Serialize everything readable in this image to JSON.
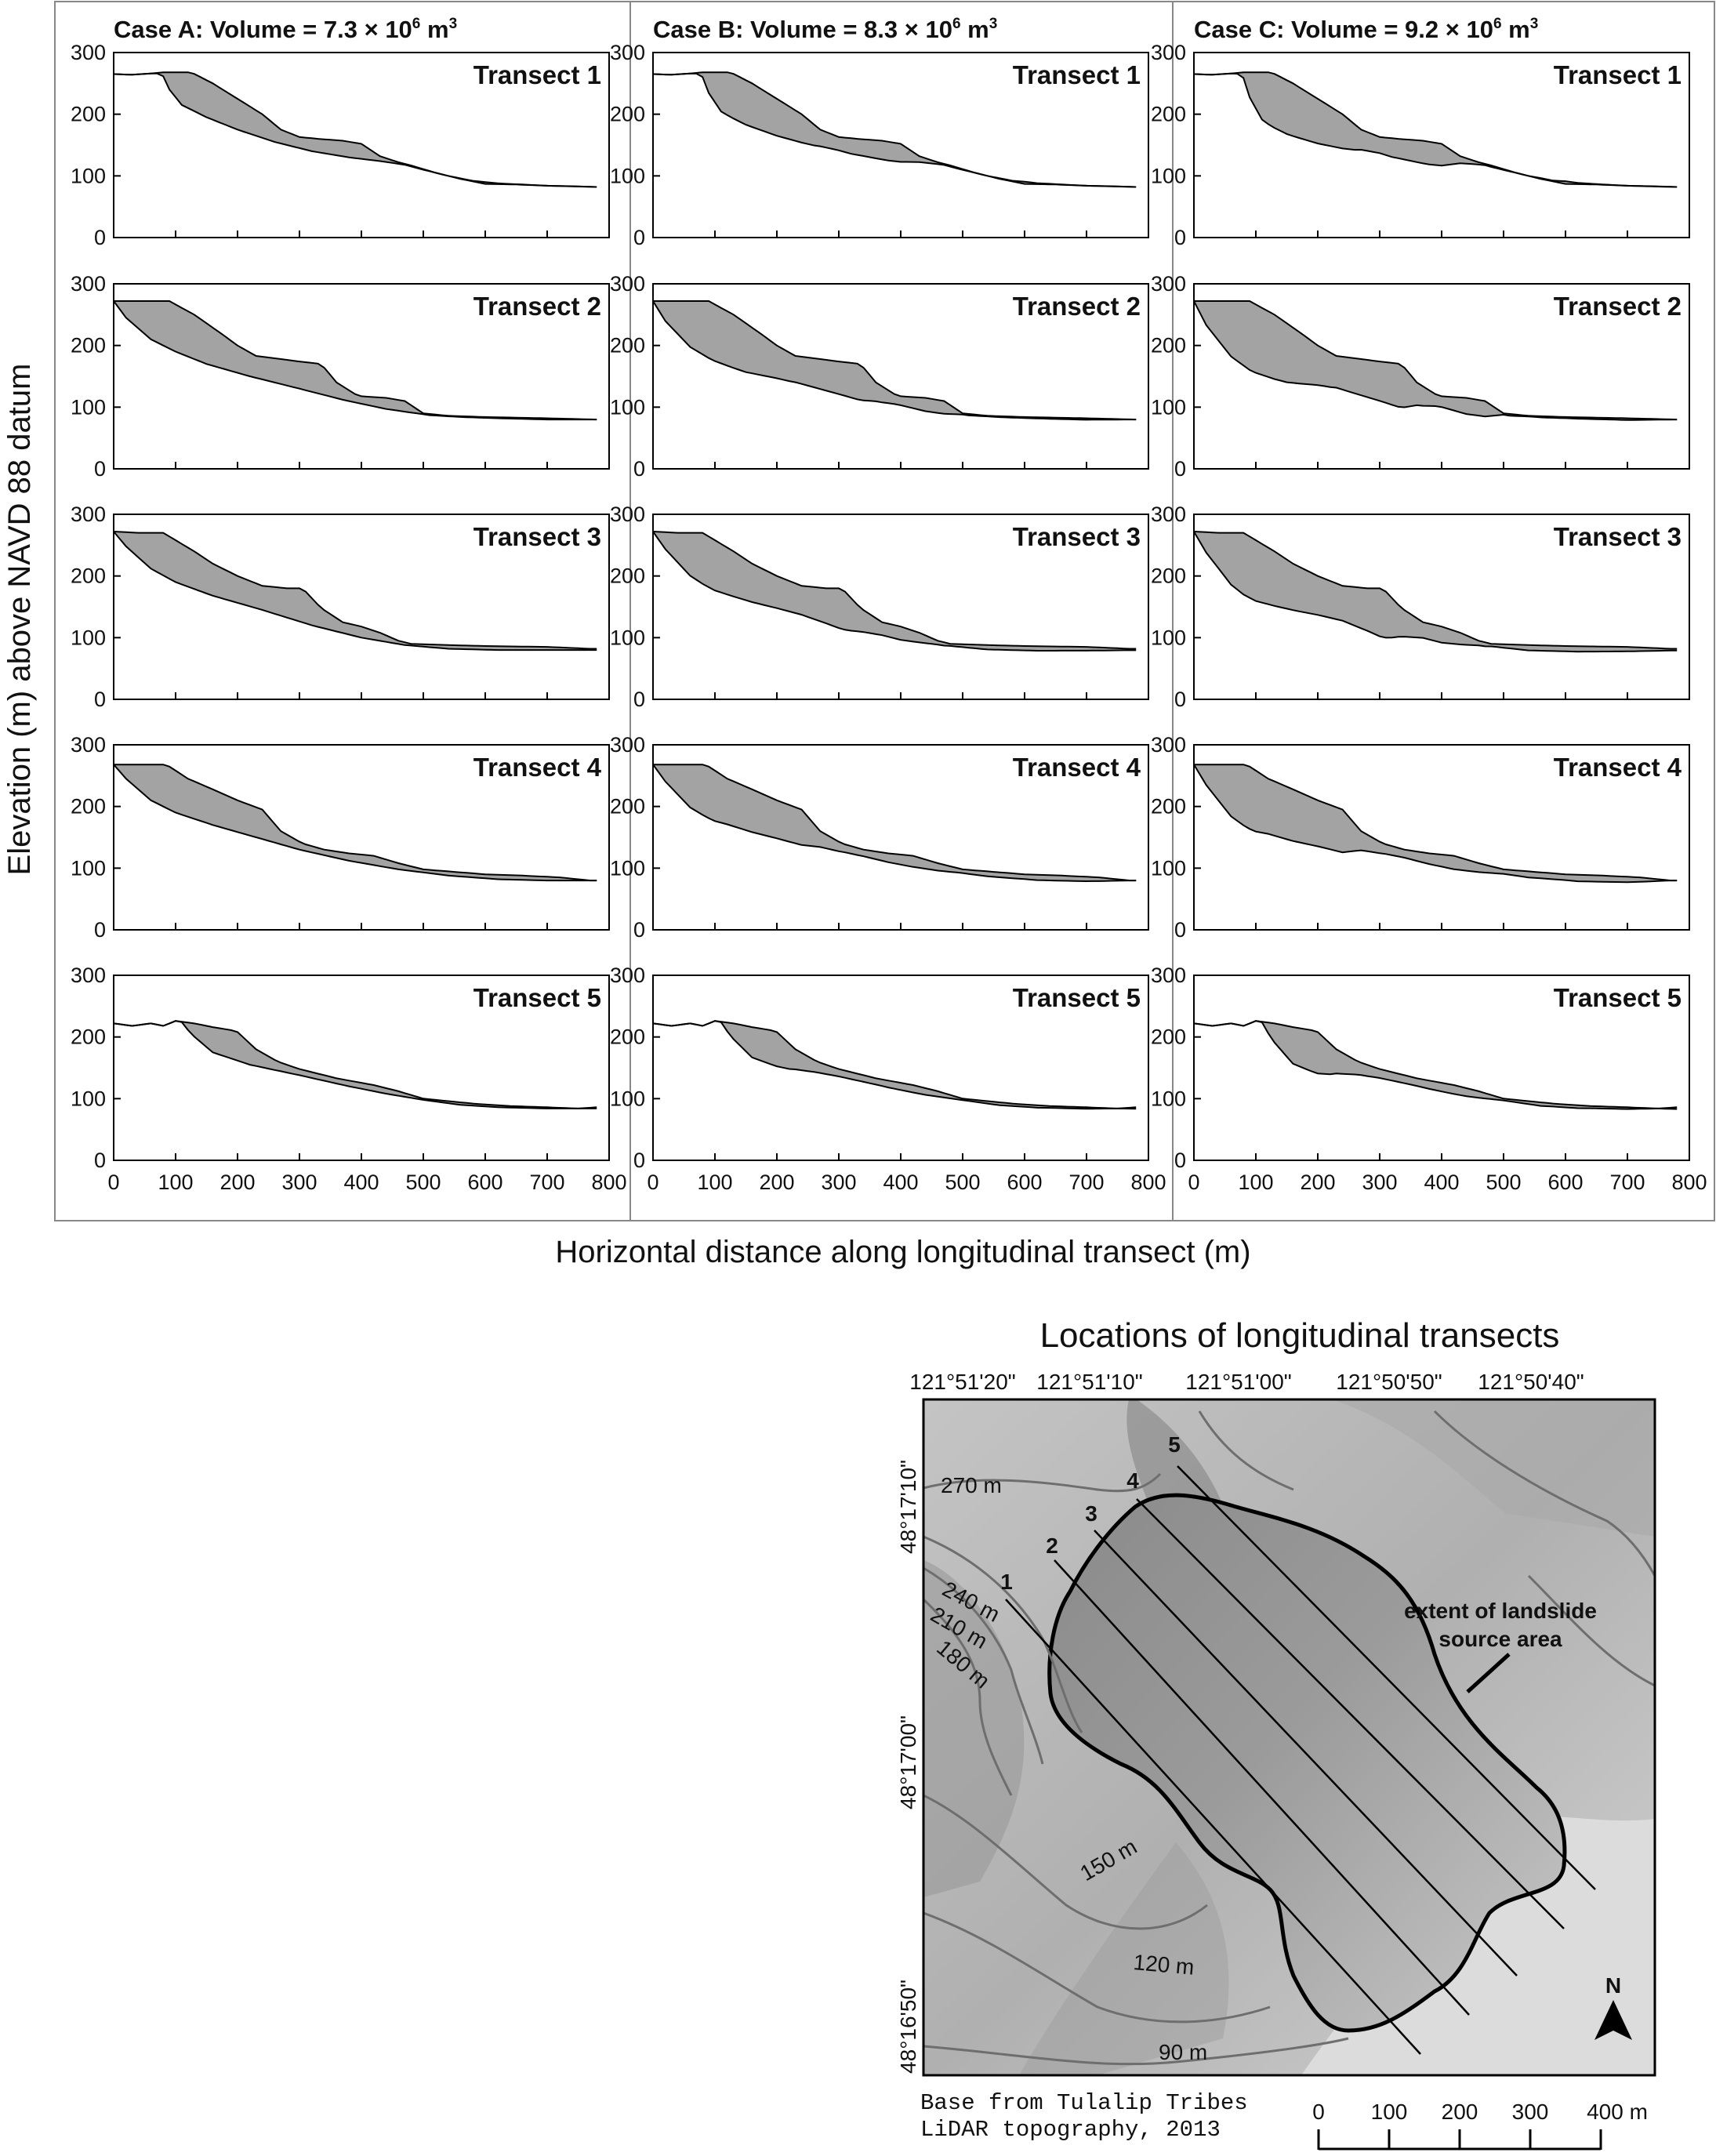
{
  "chart_data": {
    "type": "area",
    "description_free": true,
    "xlabel": "Horizontal distance along longitudinal transect (m)",
    "ylabel": "Elevation (m) above NAVD 88 datum",
    "xlim": [
      0,
      800
    ],
    "ylim": [
      0,
      300
    ],
    "x_ticks": [
      "0",
      "100",
      "200",
      "300",
      "400",
      "500",
      "600",
      "700",
      "800"
    ],
    "y_ticks": [
      "0",
      "100",
      "200",
      "300"
    ],
    "cases": [
      {
        "title": "Case A: Volume = 7.3 × 10",
        "exp": "6",
        "unit": " m",
        "unit_exp": "3",
        "volume": 7300000,
        "depth_scale": 1.0
      },
      {
        "title": "Case B: Volume = 8.3 × 10",
        "exp": "6",
        "unit": " m",
        "unit_exp": "3",
        "volume": 8300000,
        "depth_scale": 1.2
      },
      {
        "title": "Case C: Volume = 9.2 × 10",
        "exp": "6",
        "unit": " m",
        "unit_exp": "3",
        "volume": 9200000,
        "depth_scale": 1.45
      }
    ],
    "transects": [
      {
        "name": "Transect 1",
        "ground": [
          [
            0,
            265
          ],
          [
            30,
            264
          ],
          [
            60,
            266
          ],
          [
            80,
            268
          ],
          [
            125,
            268
          ],
          [
            160,
            250
          ],
          [
            200,
            225
          ],
          [
            240,
            200
          ],
          [
            270,
            175
          ],
          [
            300,
            163
          ],
          [
            330,
            160
          ],
          [
            370,
            157
          ],
          [
            400,
            152
          ],
          [
            430,
            132
          ],
          [
            460,
            122
          ],
          [
            480,
            117
          ],
          [
            520,
            105
          ],
          [
            560,
            95
          ],
          [
            600,
            87
          ],
          [
            650,
            86
          ],
          [
            700,
            84
          ],
          [
            750,
            83
          ],
          [
            780,
            82
          ]
        ],
        "surface": [
          [
            0,
            265
          ],
          [
            30,
            264
          ],
          [
            60,
            266
          ],
          [
            78,
            266
          ],
          [
            90,
            240
          ],
          [
            110,
            215
          ],
          [
            150,
            195
          ],
          [
            200,
            175
          ],
          [
            260,
            155
          ],
          [
            320,
            140
          ],
          [
            380,
            130
          ],
          [
            430,
            124
          ],
          [
            470,
            118
          ],
          [
            500,
            110
          ],
          [
            540,
            100
          ],
          [
            580,
            92
          ],
          [
            620,
            88
          ],
          [
            700,
            84
          ],
          [
            780,
            82
          ]
        ]
      },
      {
        "name": "Transect 2",
        "ground": [
          [
            0,
            272
          ],
          [
            45,
            272
          ],
          [
            90,
            272
          ],
          [
            130,
            250
          ],
          [
            170,
            222
          ],
          [
            200,
            200
          ],
          [
            230,
            183
          ],
          [
            270,
            178
          ],
          [
            300,
            174
          ],
          [
            335,
            170
          ],
          [
            360,
            140
          ],
          [
            395,
            118
          ],
          [
            440,
            115
          ],
          [
            470,
            110
          ],
          [
            500,
            90
          ],
          [
            540,
            86
          ],
          [
            600,
            84
          ],
          [
            700,
            82
          ],
          [
            780,
            80
          ]
        ],
        "surface": [
          [
            0,
            272
          ],
          [
            20,
            245
          ],
          [
            60,
            210
          ],
          [
            100,
            190
          ],
          [
            150,
            170
          ],
          [
            220,
            150
          ],
          [
            300,
            130
          ],
          [
            370,
            112
          ],
          [
            440,
            97
          ],
          [
            510,
            87
          ],
          [
            560,
            84
          ],
          [
            620,
            82
          ],
          [
            700,
            80
          ],
          [
            780,
            80
          ]
        ]
      },
      {
        "name": "Transect 3",
        "ground": [
          [
            0,
            272
          ],
          [
            40,
            270
          ],
          [
            80,
            270
          ],
          [
            130,
            240
          ],
          [
            160,
            220
          ],
          [
            200,
            200
          ],
          [
            240,
            184
          ],
          [
            280,
            180
          ],
          [
            305,
            180
          ],
          [
            335,
            148
          ],
          [
            370,
            125
          ],
          [
            400,
            118
          ],
          [
            430,
            108
          ],
          [
            460,
            95
          ],
          [
            480,
            90
          ],
          [
            540,
            88
          ],
          [
            620,
            86
          ],
          [
            700,
            85
          ],
          [
            770,
            82
          ]
        ],
        "surface": [
          [
            0,
            272
          ],
          [
            20,
            248
          ],
          [
            60,
            212
          ],
          [
            100,
            190
          ],
          [
            160,
            168
          ],
          [
            240,
            145
          ],
          [
            320,
            120
          ],
          [
            400,
            100
          ],
          [
            470,
            88
          ],
          [
            540,
            82
          ],
          [
            620,
            80
          ],
          [
            700,
            80
          ],
          [
            780,
            80
          ]
        ]
      },
      {
        "name": "Transect 4",
        "ground": [
          [
            0,
            268
          ],
          [
            45,
            268
          ],
          [
            85,
            268
          ],
          [
            120,
            245
          ],
          [
            155,
            230
          ],
          [
            200,
            210
          ],
          [
            240,
            195
          ],
          [
            270,
            160
          ],
          [
            305,
            140
          ],
          [
            340,
            130
          ],
          [
            380,
            124
          ],
          [
            420,
            120
          ],
          [
            460,
            108
          ],
          [
            500,
            98
          ],
          [
            550,
            94
          ],
          [
            600,
            90
          ],
          [
            660,
            88
          ],
          [
            720,
            85
          ],
          [
            770,
            80
          ]
        ],
        "surface": [
          [
            0,
            268
          ],
          [
            20,
            245
          ],
          [
            60,
            210
          ],
          [
            100,
            190
          ],
          [
            160,
            170
          ],
          [
            230,
            150
          ],
          [
            300,
            130
          ],
          [
            380,
            112
          ],
          [
            460,
            98
          ],
          [
            540,
            88
          ],
          [
            620,
            82
          ],
          [
            700,
            80
          ],
          [
            780,
            80
          ]
        ]
      },
      {
        "name": "Transect 5",
        "ground": [
          [
            0,
            222
          ],
          [
            30,
            218
          ],
          [
            60,
            222
          ],
          [
            80,
            218
          ],
          [
            100,
            226
          ],
          [
            130,
            222
          ],
          [
            160,
            216
          ],
          [
            190,
            211
          ],
          [
            200,
            208
          ],
          [
            230,
            180
          ],
          [
            265,
            160
          ],
          [
            300,
            148
          ],
          [
            360,
            133
          ],
          [
            420,
            122
          ],
          [
            460,
            112
          ],
          [
            500,
            100
          ],
          [
            540,
            96
          ],
          [
            580,
            92
          ],
          [
            640,
            88
          ],
          [
            700,
            86
          ],
          [
            750,
            84
          ],
          [
            780,
            86
          ]
        ],
        "surface": [
          [
            0,
            222
          ],
          [
            30,
            218
          ],
          [
            60,
            222
          ],
          [
            80,
            218
          ],
          [
            100,
            226
          ],
          [
            110,
            224
          ],
          [
            125,
            205
          ],
          [
            160,
            175
          ],
          [
            220,
            155
          ],
          [
            300,
            138
          ],
          [
            380,
            120
          ],
          [
            440,
            108
          ],
          [
            500,
            98
          ],
          [
            560,
            90
          ],
          [
            620,
            86
          ],
          [
            700,
            84
          ],
          [
            780,
            84
          ]
        ]
      }
    ]
  },
  "map": {
    "title": "Locations of longitudinal transects",
    "longitudes": [
      "121°51'20\"",
      "121°51'10\"",
      "121°51'00\"",
      "121°50'50\"",
      "121°50'40\""
    ],
    "latitudes": [
      "48°17'10\"",
      "48°17'00\"",
      "48°16'50\""
    ],
    "contours": [
      "270 m",
      "240 m",
      "210 m",
      "180 m",
      "150 m",
      "120 m",
      "90 m"
    ],
    "transect_numbers": [
      "1",
      "2",
      "3",
      "4",
      "5"
    ],
    "source_label_line1": "extent of landslide",
    "source_label_line2": "source area",
    "north": "N",
    "credit_line1": "Base from Tulalip Tribes",
    "credit_line2": "LiDAR topography, 2013",
    "scale_ticks": [
      "0",
      "100",
      "200",
      "300"
    ],
    "scale_end": "400 m",
    "colors": {
      "fill": "#a3a3a3",
      "hillshade": "#b7b7b7",
      "contour": "#6e6e6e"
    }
  }
}
